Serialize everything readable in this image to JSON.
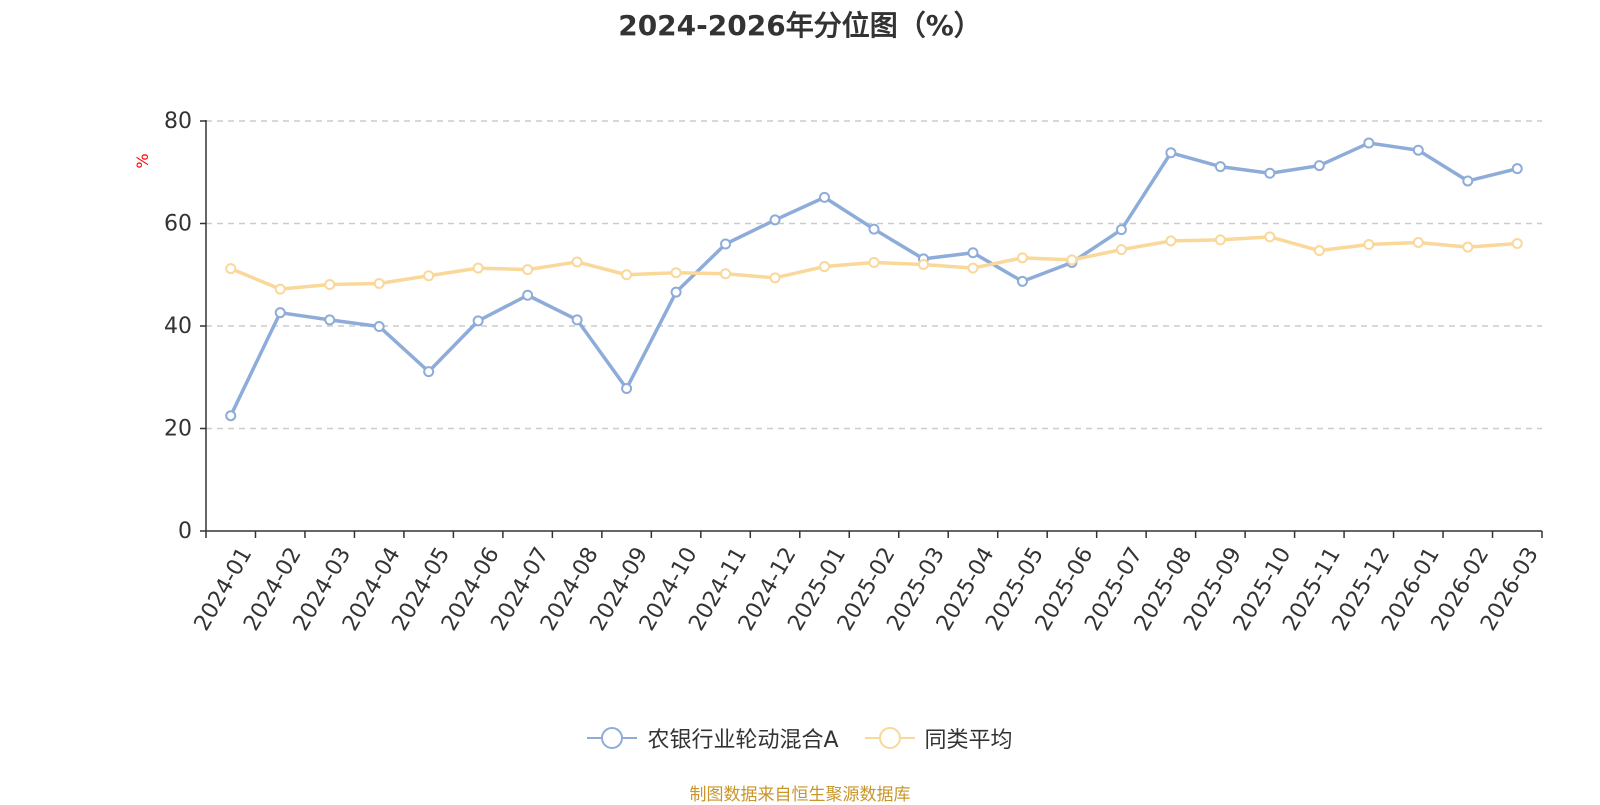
{
  "chart_data": {
    "type": "line",
    "title": "2024-2026年分位图（%）",
    "ylabel": "%",
    "xlabel": "",
    "ylim": [
      0,
      80
    ],
    "yticks": [
      0,
      20,
      40,
      60,
      80
    ],
    "grid": true,
    "legend_position": "bottom",
    "categories": [
      "2024-01",
      "2024-02",
      "2024-03",
      "2024-04",
      "2024-05",
      "2024-06",
      "2024-07",
      "2024-08",
      "2024-09",
      "2024-10",
      "2024-11",
      "2024-12",
      "2025-01",
      "2025-02",
      "2025-03",
      "2025-04",
      "2025-05",
      "2025-06",
      "2025-07",
      "2025-08",
      "2025-09",
      "2025-10",
      "2025-11",
      "2025-12",
      "2026-01",
      "2026-02",
      "2026-03"
    ],
    "series": [
      {
        "name": "农银行业轮动混合A",
        "color": "#8eacd9",
        "values": [
          22.5,
          42.6,
          41.2,
          39.9,
          31.1,
          41.0,
          46.0,
          41.2,
          27.8,
          46.6,
          56.0,
          60.7,
          65.1,
          58.9,
          53.1,
          54.3,
          48.7,
          52.4,
          58.8,
          73.8,
          71.1,
          69.8,
          71.3,
          75.7,
          74.3,
          68.3,
          70.7
        ]
      },
      {
        "name": "同类平均",
        "color": "#f9d89a",
        "values": [
          51.2,
          47.2,
          48.1,
          48.3,
          49.8,
          51.3,
          51.0,
          52.5,
          50.0,
          50.4,
          50.2,
          49.4,
          51.6,
          52.4,
          52.0,
          51.3,
          53.3,
          52.9,
          54.9,
          56.6,
          56.8,
          57.4,
          54.7,
          55.9,
          56.3,
          55.4,
          56.1
        ]
      }
    ]
  },
  "source_note": "制图数据来自恒生聚源数据库",
  "colors": {
    "axis": "#333333",
    "grid": "#cccccc",
    "ylabel": "#ff0000",
    "source": "#c8962a"
  }
}
